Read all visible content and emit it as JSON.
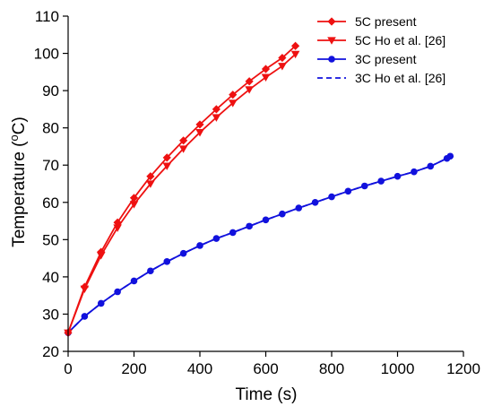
{
  "chart_data": {
    "type": "line",
    "xlabel": "Time (s)",
    "ylabel_main": "Temperature (",
    "ylabel_sup": "o",
    "ylabel_tail": "C)",
    "xlim": [
      0,
      1200
    ],
    "ylim": [
      20,
      110
    ],
    "xticks": [
      0,
      200,
      400,
      600,
      800,
      1000,
      1200
    ],
    "yticks": [
      20,
      30,
      40,
      50,
      60,
      70,
      80,
      90,
      100,
      110
    ],
    "grid": false,
    "legend_position": "top-right",
    "series": [
      {
        "name": "5C present",
        "color": "#ee1111",
        "marker": "diamond",
        "dashed": false,
        "x": [
          0,
          50,
          100,
          150,
          200,
          250,
          300,
          350,
          400,
          450,
          500,
          550,
          600,
          650,
          690
        ],
        "y": [
          25,
          37.3,
          46.7,
          54.6,
          61.2,
          67.0,
          72.0,
          76.6,
          80.9,
          85.0,
          88.9,
          92.5,
          95.8,
          98.8,
          102.0
        ]
      },
      {
        "name": "5C Ho et al. [26]",
        "color": "#ee1111",
        "marker": "triangle-down",
        "dashed": false,
        "x": [
          0,
          50,
          100,
          150,
          200,
          250,
          300,
          350,
          400,
          450,
          500,
          550,
          600,
          650,
          690
        ],
        "y": [
          25,
          36.8,
          45.8,
          53.2,
          59.5,
          65.0,
          69.8,
          74.4,
          78.8,
          82.8,
          86.7,
          90.3,
          93.6,
          96.6,
          99.8
        ]
      },
      {
        "name": "3C present",
        "color": "#1111dd",
        "marker": "circle",
        "dashed": false,
        "x": [
          0,
          50,
          100,
          150,
          200,
          250,
          300,
          350,
          400,
          450,
          500,
          550,
          600,
          650,
          700,
          750,
          800,
          850,
          900,
          950,
          1000,
          1050,
          1100,
          1150,
          1160
        ],
        "y": [
          25,
          29.4,
          32.9,
          36.0,
          38.9,
          41.6,
          44.1,
          46.3,
          48.4,
          50.3,
          51.9,
          53.6,
          55.3,
          56.9,
          58.5,
          60.0,
          61.5,
          63.0,
          64.4,
          65.7,
          67.0,
          68.2,
          69.7,
          71.8,
          72.4
        ]
      },
      {
        "name": "3C Ho et al. [26]",
        "color": "#1111dd",
        "marker": "none",
        "dashed": true,
        "x": [
          0,
          50,
          100,
          150,
          200,
          250,
          300,
          350,
          400,
          450,
          500,
          550,
          600,
          650,
          700,
          750,
          800,
          850,
          900,
          950,
          1000,
          1050,
          1100,
          1150,
          1160
        ],
        "y": [
          25,
          29.4,
          32.9,
          36.0,
          38.9,
          41.6,
          44.1,
          46.3,
          48.4,
          50.3,
          51.9,
          53.6,
          55.3,
          56.9,
          58.5,
          60.0,
          61.5,
          63.0,
          64.4,
          65.7,
          67.0,
          68.2,
          69.7,
          71.8,
          72.4
        ]
      }
    ]
  }
}
